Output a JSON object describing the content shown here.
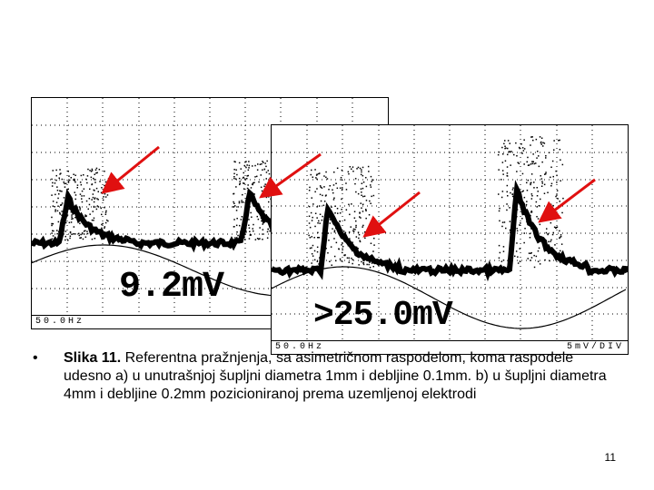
{
  "scope_a": {
    "readout": "9.2mV",
    "status_left": "50.0Hz",
    "status_right": ""
  },
  "scope_b": {
    "readout": ">25.0mV",
    "status_left": "50.0Hz",
    "status_right": "5mV/DIV"
  },
  "caption": {
    "bullet": "•",
    "label": "Slika 11.",
    "text": " Referentna pražnjenja, sa asimetričnom raspodelom, koma raspodele udesno a) u unutrašnjoj šupljni diametra 1mm i debljine 0.1mm. b) u šupljni diametra 4mm i debljine 0.2mm pozicioniranoj prema uzemljenoj elektrodi"
  },
  "page_number": "11",
  "colors": {
    "arrow": "#e01010",
    "trace": "#000000",
    "grid": "#000000"
  },
  "icons": {
    "arrow": "red-arrow-icon"
  }
}
